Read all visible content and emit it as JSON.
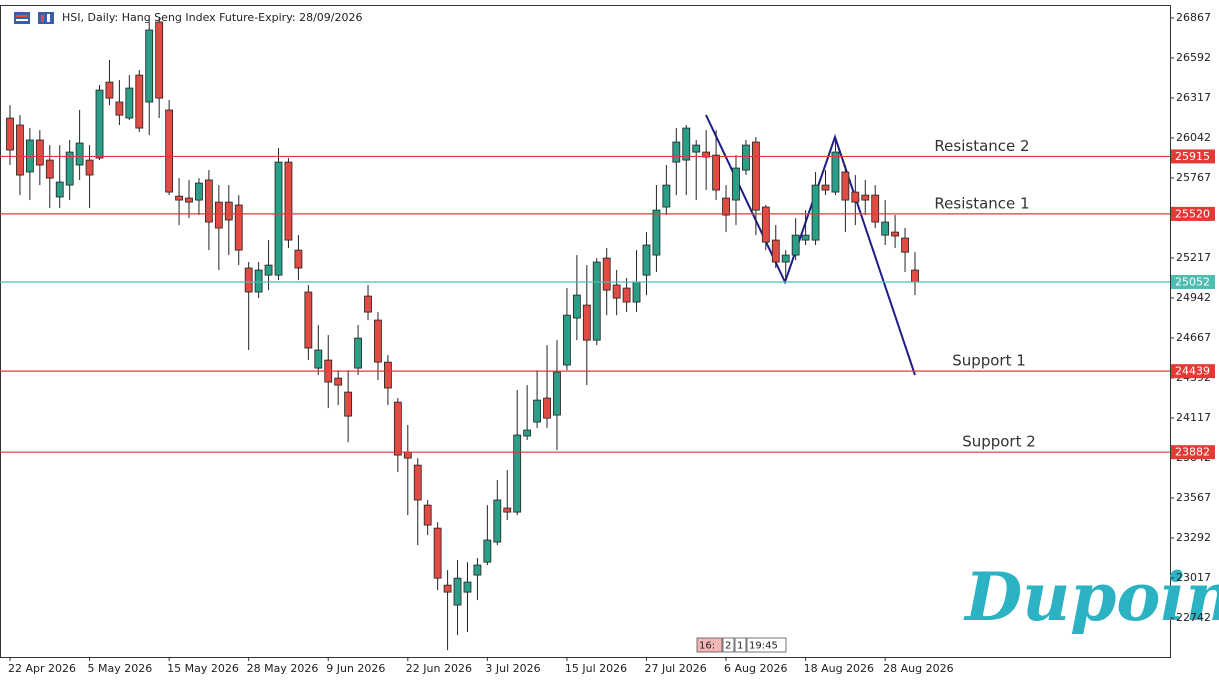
{
  "header": {
    "title": "HSI, Daily:  Hang Seng Index Future-Expiry: 28/09/2026"
  },
  "chart_data": {
    "type": "candlestick",
    "categories": [
      "22 Apr 2026",
      null,
      null,
      null,
      null,
      null,
      null,
      null,
      "5 May 2026",
      null,
      null,
      null,
      null,
      null,
      null,
      null,
      "15 May 2026",
      null,
      null,
      null,
      null,
      null,
      null,
      null,
      "28 May 2026",
      null,
      null,
      null,
      null,
      null,
      null,
      null,
      "9 Jun 2026",
      null,
      null,
      null,
      null,
      null,
      null,
      null,
      "22 Jun 2026",
      null,
      null,
      null,
      null,
      null,
      null,
      null,
      "3 Jul 2026",
      null,
      null,
      null,
      null,
      null,
      null,
      null,
      "15 Jul 2026",
      null,
      null,
      null,
      null,
      null,
      null,
      null,
      "27 Jul 2026",
      null,
      null,
      null,
      null,
      null,
      null,
      null,
      "6 Aug 2026",
      null,
      null,
      null,
      null,
      null,
      null,
      null,
      "18 Aug 2026",
      null,
      null,
      null,
      null,
      null,
      null,
      null,
      "28 Aug 2026",
      null,
      null,
      null
    ],
    "open": [
      26179,
      26131,
      25808,
      26028,
      25890,
      25636,
      25718,
      25856,
      25890,
      25904,
      26426,
      26289,
      26179,
      26474,
      26289,
      26839,
      26234,
      25642,
      25629,
      25615,
      25753,
      25601,
      25601,
      25581,
      25148,
      24983,
      25099,
      25099,
      25876,
      25271,
      24983,
      24460,
      24515,
      24391,
      24295,
      24460,
      24955,
      24790,
      24501,
      24226,
      23883,
      23793,
      23518,
      23360,
      22968,
      22831,
      22920,
      23037,
      23126,
      23264,
      23498,
      23470,
      23993,
      24089,
      24254,
      24137,
      24481,
      24804,
      24893,
      24652,
      25216,
      25031,
      25010,
      24914,
      25099,
      25237,
      25567,
      25876,
      25890,
      25945,
      25945,
      25924,
      25629,
      25615,
      25821,
      26014,
      25567,
      25340,
      25189,
      25237,
      25340,
      25340,
      25718,
      25670,
      25808,
      25670,
      25649,
      25649,
      25374,
      25395,
      25354,
      25134
    ],
    "high": [
      26268,
      26199,
      26110,
      26096,
      25993,
      25993,
      26028,
      26234,
      25993,
      26406,
      26578,
      26440,
      26474,
      26509,
      26839,
      26866,
      26303,
      25766,
      25753,
      25766,
      25821,
      25718,
      25718,
      25649,
      25189,
      25189,
      25340,
      25972,
      25904,
      25374,
      25031,
      24756,
      24687,
      24446,
      24446,
      24756,
      25031,
      24845,
      24549,
      24254,
      24069,
      23841,
      23553,
      23401,
      23071,
      23140,
      23126,
      23154,
      23518,
      23690,
      23759,
      24309,
      24343,
      24446,
      24618,
      24652,
      25010,
      25237,
      25168,
      25216,
      25285,
      25134,
      25079,
      25271,
      25395,
      25718,
      25856,
      26110,
      26131,
      26028,
      26096,
      26096,
      25718,
      25924,
      26028,
      26048,
      25581,
      25443,
      25271,
      25491,
      25546,
      25808,
      25821,
      26028,
      25856,
      25787,
      25753,
      25718,
      25615,
      25512,
      25423,
      25257
    ],
    "low": [
      25856,
      25649,
      25615,
      25718,
      25560,
      25560,
      25615,
      25753,
      25560,
      25890,
      26268,
      26131,
      26165,
      26083,
      26062,
      26179,
      25649,
      25443,
      25491,
      25512,
      25271,
      25134,
      25237,
      25168,
      24584,
      24941,
      24996,
      25065,
      25285,
      25065,
      24515,
      24412,
      24185,
      24206,
      23951,
      24412,
      24790,
      24377,
      24206,
      23745,
      23449,
      23243,
      23312,
      22934,
      22521,
      22624,
      22645,
      22865,
      23106,
      23243,
      23415,
      23449,
      23965,
      24048,
      24048,
      23896,
      24446,
      24652,
      24343,
      24618,
      24824,
      24824,
      24845,
      24845,
      24962,
      25120,
      25512,
      25649,
      25649,
      25615,
      25684,
      25615,
      25395,
      25443,
      25787,
      25374,
      25271,
      25148,
      25065,
      25203,
      25306,
      25306,
      25649,
      25649,
      25395,
      25443,
      25512,
      25423,
      25306,
      25285,
      25120,
      24962
    ],
    "close": [
      25959,
      25787,
      26028,
      25856,
      25766,
      25739,
      25945,
      26007,
      25787,
      26371,
      26316,
      26199,
      26385,
      26110,
      26784,
      26316,
      25670,
      25615,
      25601,
      25732,
      25464,
      25423,
      25478,
      25271,
      24983,
      25134,
      25168,
      25876,
      25340,
      25148,
      24598,
      24584,
      24364,
      24343,
      24130,
      24666,
      24845,
      24501,
      24323,
      23862,
      23841,
      23553,
      23381,
      23016,
      22920,
      23016,
      22989,
      23106,
      23278,
      23553,
      23470,
      24000,
      24034,
      24240,
      24116,
      24433,
      24824,
      24962,
      24652,
      25189,
      24996,
      24941,
      24914,
      25051,
      25306,
      25546,
      25718,
      26014,
      26110,
      25993,
      25911,
      25684,
      25512,
      25835,
      25993,
      25546,
      25326,
      25189,
      25237,
      25374,
      25374,
      25718,
      25684,
      25945,
      25615,
      25601,
      25615,
      25464,
      25464,
      25368,
      25257,
      25051
    ],
    "up_color": "#2b9e88",
    "down_color": "#e04b43",
    "ylim": [
      22474,
      26956
    ],
    "yticks": [
      22742,
      23017,
      23292,
      23567,
      23842,
      24117,
      24392,
      24667,
      24942,
      25217,
      25492,
      25767,
      26042,
      26317,
      26592,
      26867
    ],
    "levels": [
      {
        "value": 25915,
        "label": "Resistance 2",
        "color": "#e53935"
      },
      {
        "value": 25520,
        "label": "Resistance 1",
        "color": "#e53935"
      },
      {
        "value": 25052,
        "color": "#4dbdb0"
      },
      {
        "value": 24439,
        "label": "Support 1",
        "color": "#e53935"
      },
      {
        "value": 23882,
        "label": "Support 2",
        "color": "#e53935"
      }
    ]
  },
  "countdown": [
    "16:",
    "2",
    "1",
    "19:45"
  ],
  "logo": "Dupoin"
}
